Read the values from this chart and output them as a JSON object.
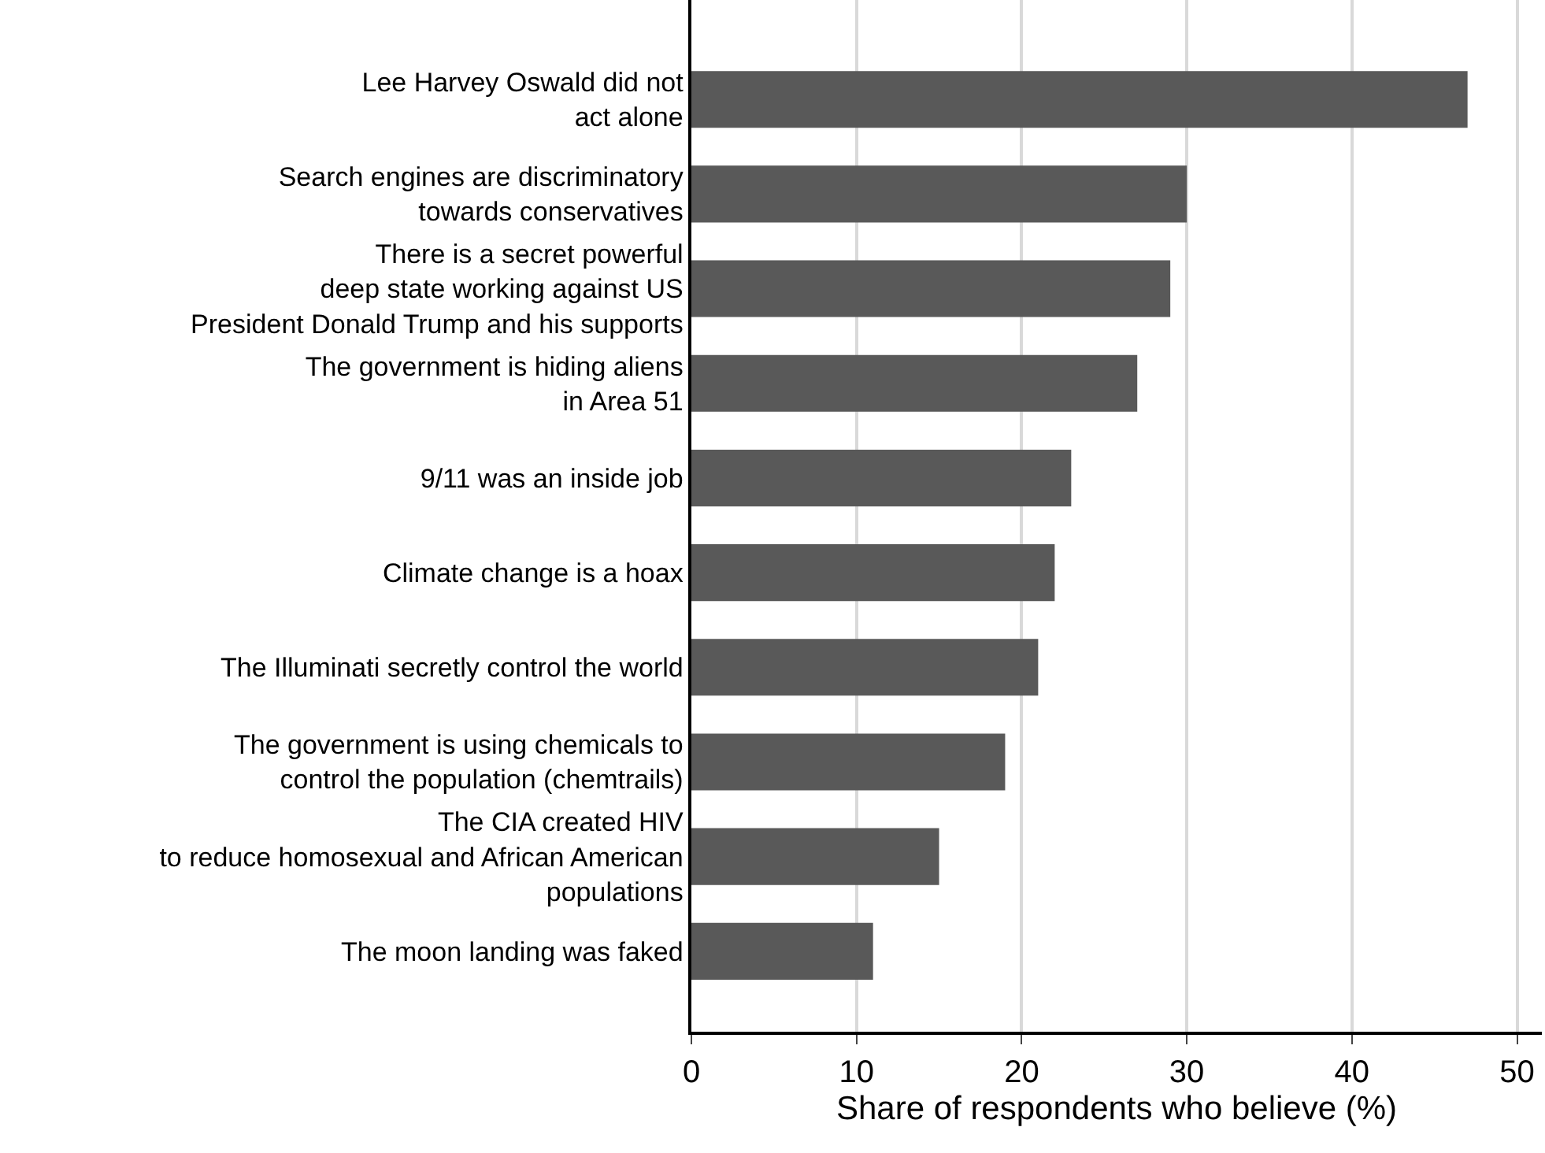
{
  "chart_data": {
    "type": "bar",
    "orientation": "horizontal",
    "categories": [
      "Lee Harvey Oswald did not\nact alone",
      "Search engines are discriminatory\ntowards conservatives",
      "There is a secret powerful\ndeep state working against US\nPresident Donald Trump and his supports",
      "The government is hiding aliens\nin Area 51",
      "9/11 was an inside job",
      "Climate change is a hoax",
      "The Illuminati secretly control the world",
      "The government is using chemicals to\ncontrol the population (chemtrails)",
      "The CIA created HIV\nto reduce homosexual and African American\npopulations",
      "The moon landing was faked"
    ],
    "values": [
      47,
      30,
      29,
      27,
      23,
      22,
      21,
      19,
      15,
      11
    ],
    "color": "#595959",
    "xlabel": "Share of respondents who believe (%)",
    "xlim": [
      0,
      51.5
    ],
    "xticks": [
      0,
      10,
      20,
      30,
      40,
      50
    ],
    "grid": "x",
    "legend": false
  }
}
